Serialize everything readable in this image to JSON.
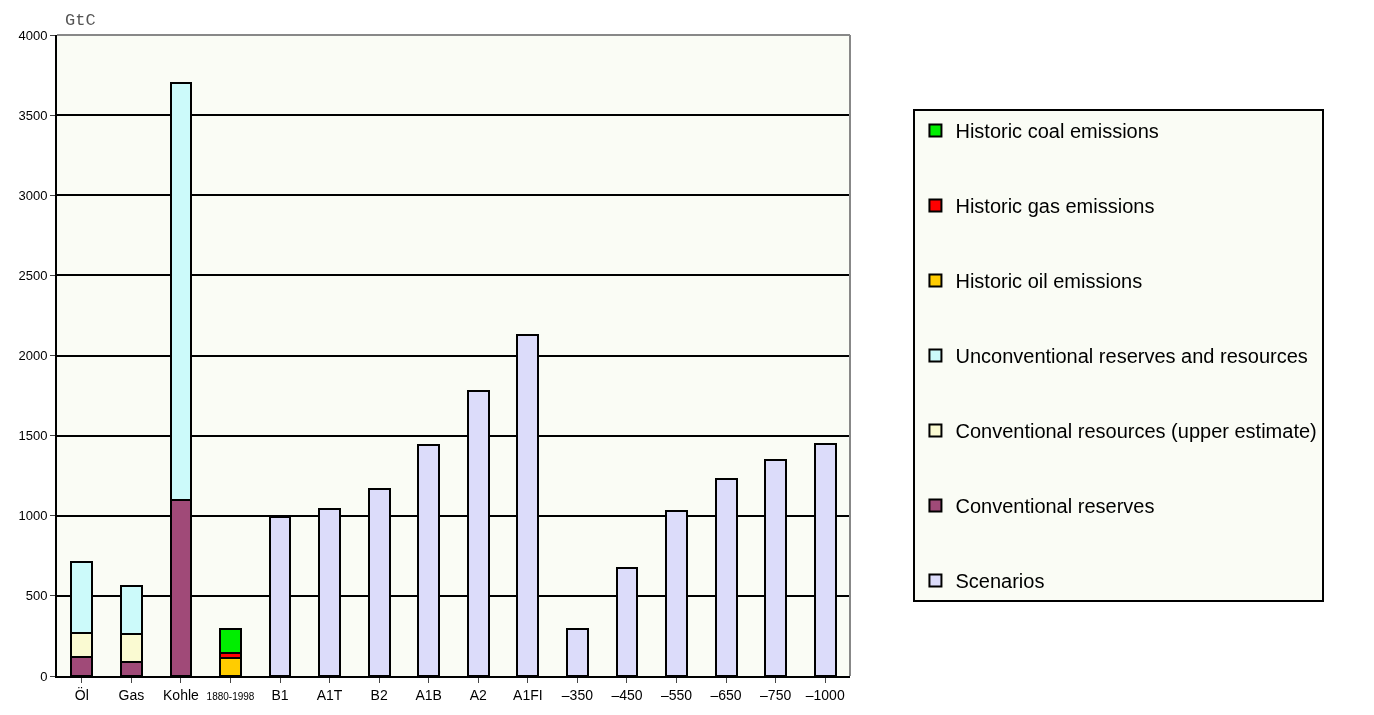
{
  "chart_data": {
    "type": "bar",
    "stacked": true,
    "ylabel": "GtC",
    "categories": [
      "Öl",
      "Gas",
      "Kohle",
      "1880-1998",
      "B1",
      "A1T",
      "B2",
      "A1B",
      "A2",
      "A1FI",
      "–350",
      "–450",
      "–550",
      "–650",
      "–750",
      "–1000"
    ],
    "series": [
      {
        "name": "Scenarios",
        "color": "#dcdcfa",
        "values": [
          null,
          null,
          null,
          null,
          990,
          1040,
          1170,
          1440,
          1780,
          2130,
          295,
          675,
          1030,
          1230,
          1345,
          1450
        ]
      },
      {
        "name": "Conventional reserves",
        "color": "#a04a78",
        "values": [
          120,
          85,
          1100,
          null,
          null,
          null,
          null,
          null,
          null,
          null,
          null,
          null,
          null,
          null,
          null,
          null
        ]
      },
      {
        "name": "Conventional resources (upper estimate)",
        "color": "#fafad2",
        "values": [
          150,
          175,
          null,
          null,
          null,
          null,
          null,
          null,
          null,
          null,
          null,
          null,
          null,
          null,
          null,
          null
        ]
      },
      {
        "name": "Unconventional reserves and resources",
        "color": "#ccfafa",
        "values": [
          440,
          300,
          2600,
          null,
          null,
          null,
          null,
          null,
          null,
          null,
          null,
          null,
          null,
          null,
          null,
          null
        ]
      },
      {
        "name": "Historic oil emissions",
        "color": "#ffcc00",
        "values": [
          null,
          null,
          null,
          110,
          null,
          null,
          null,
          null,
          null,
          null,
          null,
          null,
          null,
          null,
          null,
          null
        ]
      },
      {
        "name": "Historic gas emissions",
        "color": "#ff0000",
        "values": [
          null,
          null,
          null,
          35,
          null,
          null,
          null,
          null,
          null,
          null,
          null,
          null,
          null,
          null,
          null,
          null
        ]
      },
      {
        "name": "Historic coal emissions",
        "color": "#00ee00",
        "values": [
          null,
          null,
          null,
          150,
          null,
          null,
          null,
          null,
          null,
          null,
          null,
          null,
          null,
          null,
          null,
          null
        ]
      }
    ],
    "ylim": [
      0,
      4000
    ],
    "yticks": [
      0,
      500,
      1000,
      1500,
      2000,
      2500,
      3000,
      3500,
      4000
    ],
    "grid": "y",
    "legend": "right"
  }
}
